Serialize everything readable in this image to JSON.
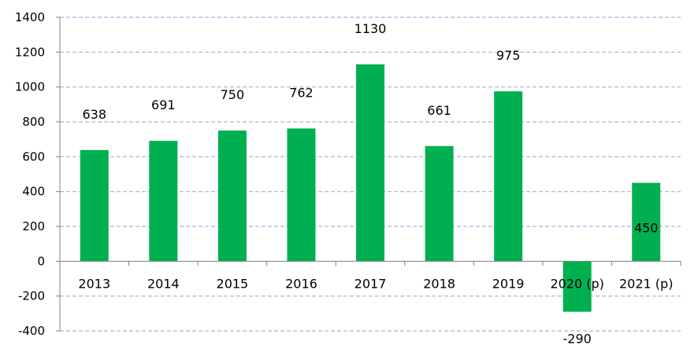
{
  "chart_data": {
    "type": "bar",
    "categories": [
      "2013",
      "2014",
      "2015",
      "2016",
      "2017",
      "2018",
      "2019",
      "2020 (p)",
      "2021 (p)"
    ],
    "values": [
      638,
      691,
      750,
      762,
      1130,
      661,
      975,
      -290,
      450
    ],
    "data_labels": [
      "638",
      "691",
      "750",
      "762",
      "1130",
      "661",
      "975",
      "-290",
      "450"
    ],
    "y_ticks": [
      -400,
      -200,
      0,
      200,
      400,
      600,
      800,
      1000,
      1200,
      1400
    ],
    "y_tick_labels": [
      "-400",
      "-200",
      "0",
      "200",
      "400",
      "600",
      "800",
      "1000",
      "1200",
      "1400"
    ],
    "ylim": [
      -400,
      1400
    ],
    "title": "",
    "xlabel": "",
    "ylabel": "",
    "grid": true,
    "legend": "none",
    "colors": {
      "bar": "#00b050",
      "grid": "#9db3e0",
      "axis": "#808080"
    }
  }
}
